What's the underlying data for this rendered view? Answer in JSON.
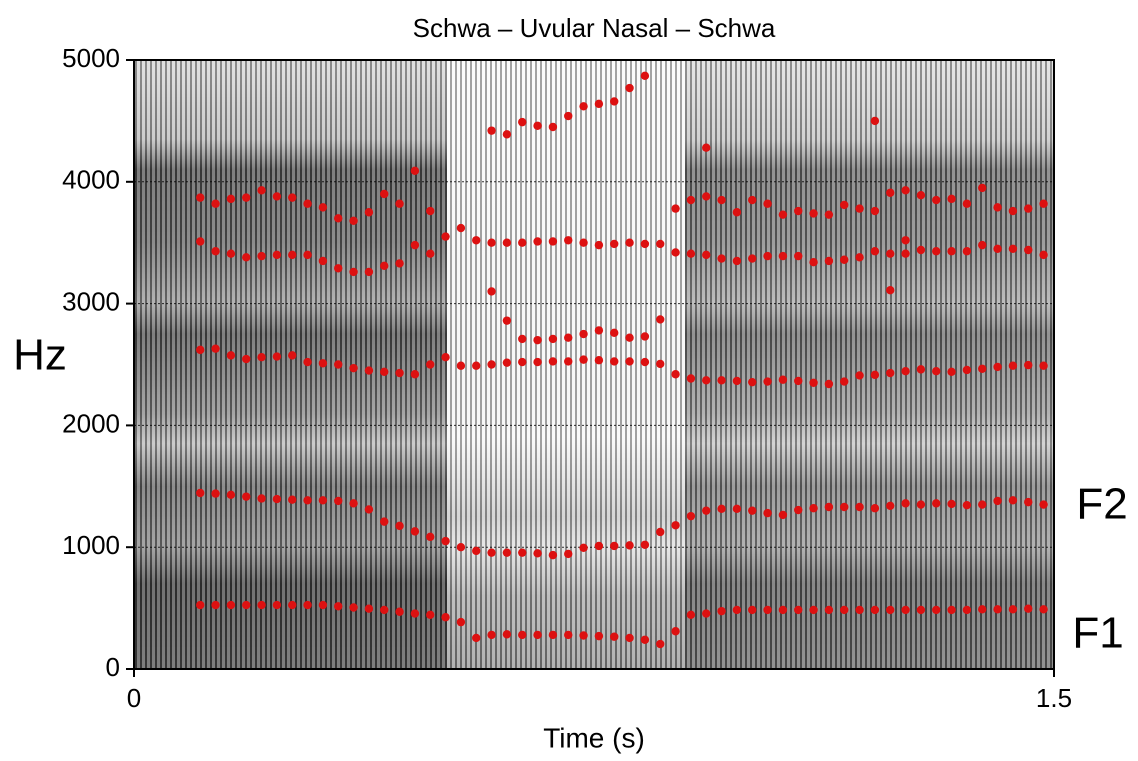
{
  "chart_data": {
    "type": "scatter",
    "title": "Schwa – Uvular Nasal – Schwa",
    "x_label": "Time (s)",
    "y_label": "Hz",
    "annotations": [
      "F2",
      "F1"
    ],
    "xlim": [
      0,
      1.5
    ],
    "xticks": [
      0,
      1.5
    ],
    "ylim": [
      0,
      5000
    ],
    "yticks": [
      0,
      1000,
      2000,
      3000,
      4000,
      5000
    ],
    "grid": true,
    "x": [
      0.108,
      0.133,
      0.158,
      0.183,
      0.208,
      0.233,
      0.258,
      0.283,
      0.308,
      0.333,
      0.358,
      0.383,
      0.408,
      0.433,
      0.458,
      0.483,
      0.508,
      0.533,
      0.558,
      0.583,
      0.608,
      0.633,
      0.658,
      0.683,
      0.708,
      0.733,
      0.758,
      0.783,
      0.808,
      0.833,
      0.858,
      0.883,
      0.908,
      0.933,
      0.958,
      0.983,
      1.008,
      1.033,
      1.058,
      1.083,
      1.108,
      1.133,
      1.158,
      1.183,
      1.208,
      1.233,
      1.258,
      1.283,
      1.308,
      1.333,
      1.358,
      1.383,
      1.408,
      1.433,
      1.458,
      1.483
    ],
    "series": [
      {
        "color": "#dd1111",
        "values": [
          525,
          525,
          525,
          525,
          525,
          525,
          525,
          525,
          525,
          515,
          505,
          495,
          485,
          470,
          455,
          445,
          425,
          385,
          255,
          280,
          285,
          280,
          280,
          280,
          280,
          275,
          270,
          265,
          255,
          240,
          205,
          310,
          445,
          455,
          475,
          485,
          485,
          485,
          485,
          485,
          485,
          485,
          485,
          485,
          485,
          485,
          485,
          485,
          485,
          485,
          485,
          490,
          490,
          490,
          495,
          490
        ]
      },
      {
        "color": "#dd1111",
        "values": [
          1445,
          1440,
          1430,
          1415,
          1400,
          1395,
          1390,
          1385,
          1385,
          1380,
          1360,
          1310,
          1210,
          1175,
          1130,
          1085,
          1050,
          1000,
          970,
          955,
          955,
          955,
          950,
          935,
          945,
          995,
          1010,
          1010,
          1015,
          1020,
          1125,
          1180,
          1255,
          1300,
          1315,
          1315,
          1300,
          1280,
          1265,
          1305,
          1320,
          1330,
          1330,
          1330,
          1320,
          1340,
          1360,
          1350,
          1360,
          1355,
          1345,
          1350,
          1380,
          1385,
          1370,
          1350
        ]
      },
      {
        "color": "#dd1111",
        "values": [
          2620,
          2630,
          2575,
          2545,
          2560,
          2565,
          2575,
          2520,
          2510,
          2500,
          2470,
          2450,
          2440,
          2430,
          2420,
          2500,
          2560,
          2490,
          2490,
          2500,
          2515,
          2520,
          2520,
          2525,
          2525,
          2540,
          2535,
          2525,
          2525,
          2520,
          2505,
          2420,
          2385,
          2370,
          2370,
          2365,
          2355,
          2360,
          2375,
          2365,
          2350,
          2340,
          2360,
          2410,
          2415,
          2430,
          2445,
          2460,
          2445,
          2440,
          2455,
          2465,
          2480,
          2490,
          2495,
          2490
        ]
      },
      {
        "color": "#dd1111",
        "values": [
          3510,
          3430,
          3410,
          3380,
          3390,
          3400,
          3400,
          3400,
          3350,
          3290,
          3260,
          3260,
          3310,
          3330,
          3480,
          3410,
          3550,
          3620,
          3520,
          3500,
          3500,
          3500,
          3510,
          3510,
          3520,
          3500,
          3480,
          3490,
          3500,
          3490,
          3490,
          3420,
          3410,
          3400,
          3370,
          3350,
          3370,
          3390,
          3390,
          3390,
          3340,
          3350,
          3360,
          3380,
          3430,
          3410,
          3410,
          3440,
          3430,
          3430,
          3430,
          3480,
          3450,
          3450,
          3440,
          3400
        ]
      },
      {
        "color": "#dd1111",
        "values": [
          3870,
          3820,
          3860,
          3870,
          3930,
          3880,
          3870,
          3820,
          3790,
          3700,
          3680,
          3750,
          3900,
          3820,
          4090,
          3760,
          null,
          null,
          null,
          null,
          null,
          null,
          null,
          null,
          null,
          null,
          null,
          null,
          null,
          null,
          null,
          3780,
          3850,
          3880,
          3850,
          3750,
          3850,
          3820,
          3730,
          3760,
          3740,
          3730,
          3810,
          3780,
          3760,
          3910,
          3930,
          3890,
          3850,
          3860,
          3820,
          3950,
          3790,
          3760,
          3780,
          3820
        ]
      },
      {
        "color": "#dd1111",
        "values": [
          null,
          null,
          null,
          null,
          null,
          null,
          null,
          null,
          null,
          null,
          null,
          null,
          null,
          null,
          null,
          null,
          null,
          null,
          null,
          4420,
          4390,
          4490,
          4460,
          4450,
          4540,
          4620,
          4640,
          4660,
          4770,
          4870,
          null,
          null,
          null,
          4280,
          null,
          null,
          null,
          null,
          null,
          null,
          null,
          null,
          null,
          null,
          4500,
          null,
          null,
          null,
          null,
          null,
          null,
          null,
          null,
          null,
          null,
          null
        ]
      },
      {
        "color": "#dd1111",
        "values": [
          null,
          null,
          null,
          null,
          null,
          null,
          null,
          null,
          null,
          null,
          null,
          null,
          null,
          null,
          null,
          null,
          null,
          null,
          null,
          3100,
          2860,
          2710,
          2700,
          2710,
          2720,
          2750,
          2780,
          2760,
          2720,
          2730,
          2870,
          null,
          null,
          null,
          null,
          null,
          null,
          null,
          null,
          null,
          null,
          null,
          null,
          null,
          null,
          3110,
          3520,
          null,
          null,
          null,
          null,
          null,
          null,
          null,
          null,
          null
        ]
      }
    ]
  }
}
